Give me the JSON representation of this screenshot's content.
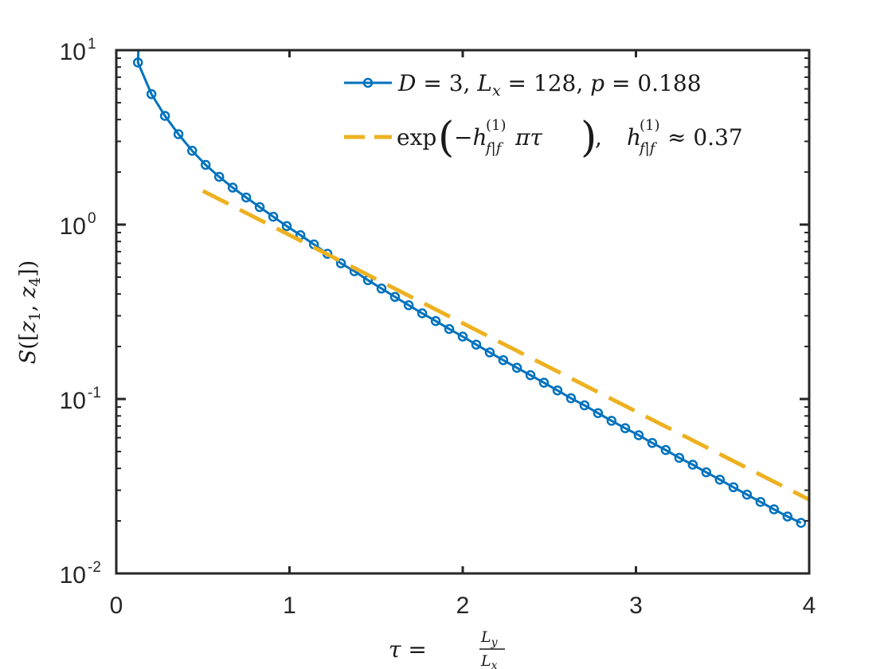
{
  "chart_data": {
    "type": "line",
    "yscale": "log",
    "xlim": [
      0,
      4
    ],
    "ylim": [
      0.01,
      10
    ],
    "xticks": [
      0,
      1,
      2,
      3,
      4
    ],
    "xtick_labels": [
      "0",
      "1",
      "2",
      "3",
      "4"
    ],
    "yticks": [
      0.01,
      0.1,
      1,
      10
    ],
    "ytick_labels": [
      {
        "base": "10",
        "exp": "-2"
      },
      {
        "base": "10",
        "exp": "-1"
      },
      {
        "base": "10",
        "exp": "0"
      },
      {
        "base": "10",
        "exp": "1"
      }
    ],
    "grid": false,
    "legend_position": "top-right",
    "xlabel": {
      "lhs": "τ",
      "eq": " = ",
      "num": "L",
      "num_sub": "y",
      "den": "L",
      "den_sub": "x"
    },
    "ylabel": {
      "s": "S",
      "open": "([",
      "z1": "z",
      "z1_sub": "1",
      "sep": ", ",
      "z4": "z",
      "z4_sub": "4",
      "close": "])"
    },
    "series": [
      {
        "name": "D = 3,  Lx = 128,  p = 0.188",
        "legend": {
          "d": "D",
          "d_eq": " = 3,  ",
          "l": "L",
          "l_sub": "x",
          "l_eq": " = 128,  ",
          "p": "p",
          "p_eq": " = 0.188"
        },
        "color": "#0072BD",
        "style": "solid-circle",
        "x": [
          0.125,
          0.203,
          0.281,
          0.359,
          0.438,
          0.516,
          0.594,
          0.672,
          0.75,
          0.828,
          0.906,
          0.984,
          1.063,
          1.141,
          1.219,
          1.297,
          1.375,
          1.453,
          1.531,
          1.609,
          1.688,
          1.766,
          1.844,
          1.922,
          2.0,
          2.078,
          2.156,
          2.234,
          2.313,
          2.391,
          2.469,
          2.547,
          2.625,
          2.703,
          2.781,
          2.859,
          2.938,
          3.016,
          3.094,
          3.172,
          3.25,
          3.328,
          3.406,
          3.484,
          3.563,
          3.641,
          3.719,
          3.797,
          3.875,
          3.953
        ],
        "values": [
          8.5,
          5.6,
          4.2,
          3.3,
          2.65,
          2.2,
          1.88,
          1.63,
          1.43,
          1.26,
          1.11,
          0.98,
          0.87,
          0.77,
          0.68,
          0.6,
          0.54,
          0.48,
          0.43,
          0.385,
          0.345,
          0.31,
          0.28,
          0.252,
          0.228,
          0.205,
          0.185,
          0.167,
          0.151,
          0.137,
          0.124,
          0.112,
          0.101,
          0.092,
          0.083,
          0.075,
          0.068,
          0.062,
          0.056,
          0.051,
          0.046,
          0.042,
          0.038,
          0.0345,
          0.0312,
          0.0283,
          0.0257,
          0.0233,
          0.0212,
          0.0195
        ]
      },
      {
        "name": "exp(−h(1)f|f πτ),  h(1)f|f ≈ 0.37",
        "legend": {
          "fn": "exp",
          "lp": "(",
          "minus": "−",
          "h": "h",
          "sup": "(1)",
          "sub": "f|f",
          "pitau": "πτ",
          "rp": ")",
          "sep": ",  ",
          "h2": "h",
          "sup2": "(1)",
          "sub2": "f|f",
          "approx": " ≈ 0.37"
        },
        "color": "#EDB120",
        "style": "dashed",
        "x": [
          0.5,
          4.0
        ],
        "values": [
          1.56,
          0.0265
        ]
      }
    ]
  }
}
